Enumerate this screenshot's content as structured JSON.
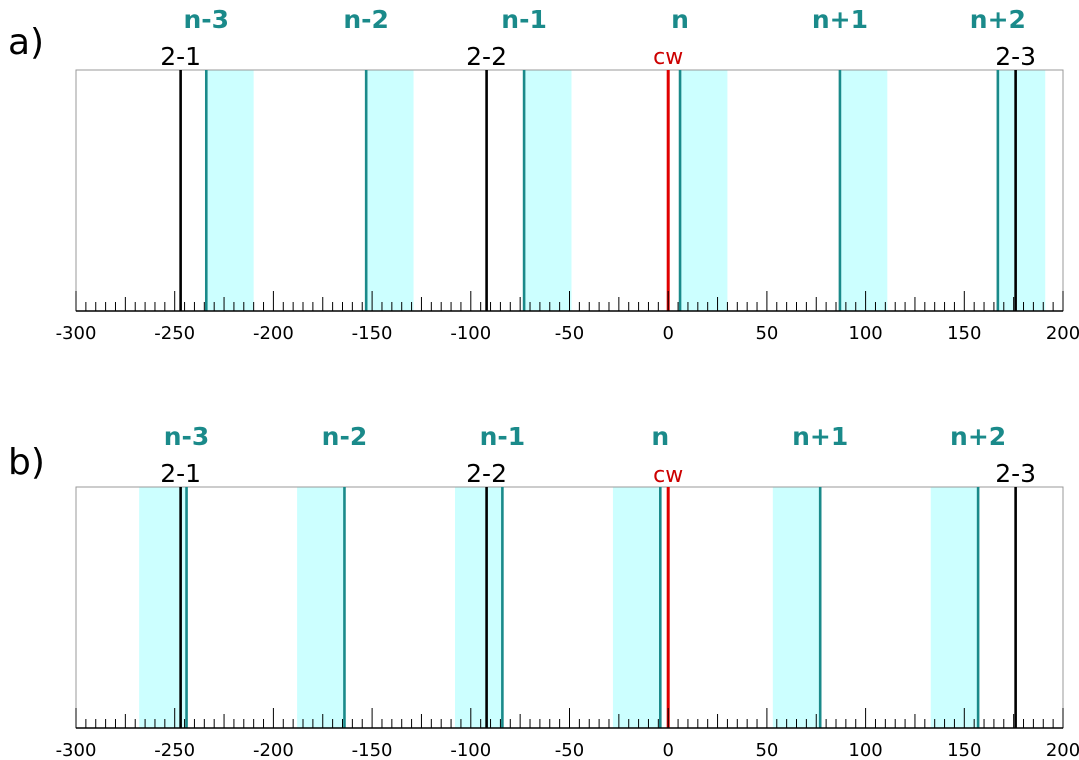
{
  "colors": {
    "mode_line": "#1a8a8a",
    "mode_band": "#ccffff",
    "mode_label": "#1a8a8a",
    "cw_line": "#e00000",
    "cw_label": "#cc0000",
    "hf_line": "#000000",
    "frame": "#999999",
    "axis": "#000000"
  },
  "chart_data": [
    {
      "type": "line",
      "panel_label": "a)",
      "xlim": [
        -300,
        200
      ],
      "xticks": [
        -300,
        -250,
        -200,
        -150,
        -100,
        -50,
        0,
        50,
        100,
        150,
        200
      ],
      "tick_labels": [
        "-300",
        "-250",
        "-200",
        "-150",
        "-100",
        "-50",
        "0",
        "50",
        "100",
        "150",
        "200"
      ],
      "minor_tick_step": 5,
      "band_side": "right",
      "band_width": 24,
      "modes": [
        {
          "label": "n-3",
          "x": -234
        },
        {
          "label": "n-2",
          "x": -153
        },
        {
          "label": "n-1",
          "x": -73
        },
        {
          "label": "n",
          "x": 6
        },
        {
          "label": "n+1",
          "x": 87
        },
        {
          "label": "n+2",
          "x": 167
        }
      ],
      "hyperfine_lines": [
        {
          "label": "2-1",
          "x": -247
        },
        {
          "label": "2-2",
          "x": -92
        },
        {
          "label": "2-3",
          "x": 176
        }
      ],
      "cw": {
        "label": "cw",
        "x": 0
      }
    },
    {
      "type": "line",
      "panel_label": "b)",
      "xlim": [
        -300,
        200
      ],
      "xticks": [
        -300,
        -250,
        -200,
        -150,
        -100,
        -50,
        0,
        50,
        100,
        150,
        200
      ],
      "tick_labels": [
        "-300",
        "-250",
        "-200",
        "-150",
        "-100",
        "-50",
        "0",
        "50",
        "100",
        "150",
        "200"
      ],
      "minor_tick_step": 5,
      "band_side": "left",
      "band_width": 24,
      "modes": [
        {
          "label": "n-3",
          "x": -244
        },
        {
          "label": "n-2",
          "x": -164
        },
        {
          "label": "n-1",
          "x": -84
        },
        {
          "label": "n",
          "x": -4
        },
        {
          "label": "n+1",
          "x": 77
        },
        {
          "label": "n+2",
          "x": 157
        }
      ],
      "hyperfine_lines": [
        {
          "label": "2-1",
          "x": -247
        },
        {
          "label": "2-2",
          "x": -92
        },
        {
          "label": "2-3",
          "x": 176
        }
      ],
      "cw": {
        "label": "cw",
        "x": 0
      }
    }
  ]
}
